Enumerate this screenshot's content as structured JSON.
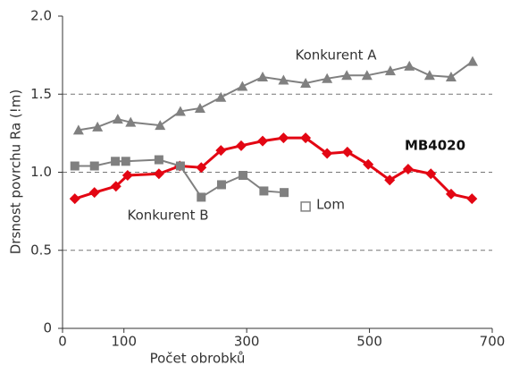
{
  "chart_data": {
    "type": "line",
    "xlabel": "Počet obrobků",
    "ylabel": "Drsnost povrchu Ra (!m)",
    "xlim": [
      0,
      700
    ],
    "xticks": [
      0,
      100,
      300,
      500,
      700
    ],
    "ylim": [
      0,
      2
    ],
    "yticks": [
      0,
      0.5,
      {
        "value": 1,
        "label": "1.0"
      },
      1.5,
      {
        "value": 2,
        "label": "2.0"
      }
    ],
    "grid": true,
    "series": [
      {
        "name": "Konkurent A",
        "color": "#808080",
        "marker": "triangle",
        "x": [
          26,
          57,
          90,
          111,
          159,
          192,
          224,
          258,
          293,
          326,
          360,
          396,
          431,
          463,
          496,
          534,
          565,
          598,
          633,
          668
        ],
        "values": [
          1.27,
          1.29,
          1.34,
          1.32,
          1.3,
          1.39,
          1.41,
          1.48,
          1.55,
          1.61,
          1.59,
          1.57,
          1.6,
          1.62,
          1.62,
          1.65,
          1.68,
          1.62,
          1.61,
          1.71
        ]
      },
      {
        "name": "MB4020",
        "color": "#e30613",
        "marker": "diamond",
        "x": [
          20,
          52,
          87,
          106,
          157,
          191,
          226,
          258,
          291,
          326,
          360,
          396,
          431,
          464,
          498,
          533,
          563,
          600,
          633,
          667
        ],
        "values": [
          0.83,
          0.87,
          0.91,
          0.98,
          0.99,
          1.04,
          1.03,
          1.14,
          1.17,
          1.2,
          1.22,
          1.22,
          1.12,
          1.13,
          1.05,
          0.95,
          1.02,
          0.99,
          0.86,
          0.83
        ]
      },
      {
        "name": "Konkurent B",
        "color": "#808080",
        "marker": "square",
        "x": [
          20,
          52,
          86,
          103,
          157,
          192,
          226,
          259,
          294,
          328,
          361
        ],
        "values": [
          1.04,
          1.04,
          1.07,
          1.07,
          1.08,
          1.04,
          0.84,
          0.92,
          0.98,
          0.88,
          0.87
        ]
      }
    ],
    "annotations": [
      {
        "text": "Lom",
        "x": 396,
        "y": 0.78
      }
    ]
  }
}
